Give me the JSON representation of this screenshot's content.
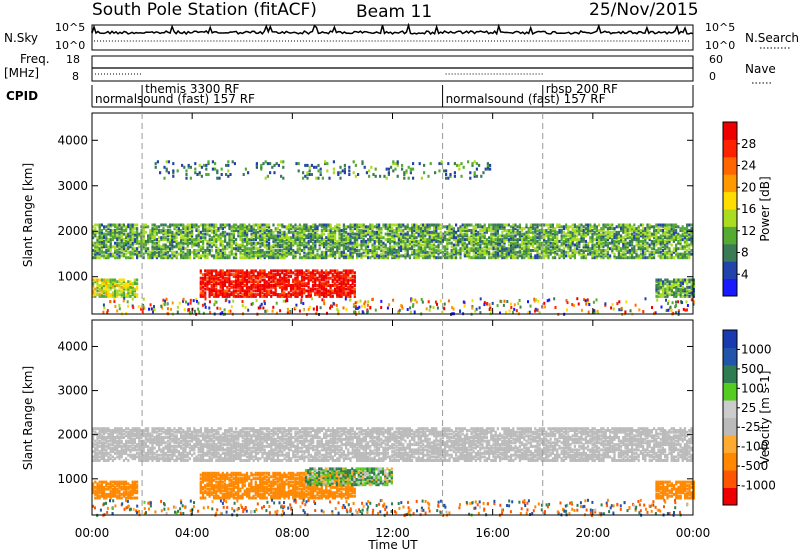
{
  "header": {
    "station": "South Pole Station (fitACF)",
    "beam": "Beam 11",
    "date": "25/Nov/2015"
  },
  "sky_panel": {
    "left_label": "N.Sky",
    "right_label": "N.Search",
    "left_ticks": [
      "10^5",
      "10^0"
    ],
    "right_ticks": [
      "10^5",
      "10^0"
    ]
  },
  "freq_panel": {
    "left_label_1": "Freq.",
    "left_label_2": "[MHz]",
    "right_label": "Nave",
    "left_ticks": [
      "18",
      "8"
    ],
    "right_ticks": [
      "60",
      "0"
    ]
  },
  "cpid_panel": {
    "label": "CPID",
    "segments": [
      {
        "text": "normalsound (fast) 157 RF",
        "start_hour": 0,
        "row": 2
      },
      {
        "text": "themis 3300 RF",
        "start_hour": 2,
        "row": 1
      },
      {
        "text": "normalsound (fast) 157 RF",
        "start_hour": 14,
        "row": 2
      },
      {
        "text": "rbsp 200 RF",
        "start_hour": 18,
        "row": 1
      }
    ]
  },
  "colors": {
    "power": [
      "#1a1aff",
      "#2244aa",
      "#3a7a55",
      "#55aa33",
      "#aadd22",
      "#ffdd00",
      "#ff9900",
      "#ff6600",
      "#ff2200",
      "#ee0000"
    ],
    "velocity": [
      "#ee0000",
      "#ff5500",
      "#ff8800",
      "#ffaa33",
      "#bbbbbb",
      "#cccccc",
      "#55cc22",
      "#2e7d50",
      "#2255aa",
      "#1a3ab0"
    ],
    "ground_scatter": "#bbbbbb"
  },
  "chart_data": [
    {
      "type": "heatmap",
      "quantity": "Power",
      "ylabel": "Slant Range [km]",
      "xlabel": "Time UT",
      "xlim": [
        0,
        24
      ],
      "ylim": [
        180,
        4600
      ],
      "xticks": [
        "00:00",
        "04:00",
        "08:00",
        "12:00",
        "16:00",
        "20:00",
        "00:00"
      ],
      "yticks": [
        1000,
        2000,
        3000,
        4000
      ],
      "colorbar": {
        "label": "Power [dB]",
        "ticks": [
          4,
          8,
          12,
          16,
          20,
          24,
          28
        ],
        "range": [
          0,
          30
        ]
      },
      "vertical_markers_hours": [
        2,
        14,
        18
      ],
      "regions": [
        {
          "name": "F-region band",
          "t": [
            0,
            23.9
          ],
          "range_km": [
            1450,
            2200
          ],
          "value": 10
        },
        {
          "name": "strong echoes",
          "t": [
            4.3,
            10.5
          ],
          "range_km": [
            600,
            1200
          ],
          "value": 28
        },
        {
          "name": "upper patches",
          "t": [
            2.5,
            16
          ],
          "range_km": [
            3200,
            3600
          ],
          "value": 8
        },
        {
          "name": "early echoes",
          "t": [
            0,
            1.8
          ],
          "range_km": [
            600,
            1000
          ],
          "value": 14
        },
        {
          "name": "late echoes",
          "t": [
            22.5,
            24
          ],
          "range_km": [
            600,
            1000
          ],
          "value": 10
        }
      ]
    },
    {
      "type": "heatmap",
      "quantity": "Velocity",
      "ylabel": "Slant Range [km]",
      "xlabel": "Time UT",
      "xlim": [
        0,
        24
      ],
      "ylim": [
        180,
        4600
      ],
      "xticks": [
        "00:00",
        "04:00",
        "08:00",
        "12:00",
        "16:00",
        "20:00",
        "00:00"
      ],
      "yticks": [
        1000,
        2000,
        3000,
        4000
      ],
      "colorbar": {
        "label": "Velocity [m s-1]",
        "ticks": [
          1000,
          500,
          100,
          25,
          -25,
          -100,
          -500,
          -1000
        ]
      },
      "vertical_markers_hours": [
        2,
        14,
        18
      ],
      "regions": [
        {
          "name": "ground scatter band",
          "t": [
            0,
            23.9
          ],
          "range_km": [
            1450,
            2200
          ],
          "value": 0
        },
        {
          "name": "strong echoes",
          "t": [
            4.3,
            10.5
          ],
          "range_km": [
            600,
            1200
          ],
          "value": -300
        },
        {
          "name": "green echoes",
          "t": [
            8.5,
            12
          ],
          "range_km": [
            900,
            1300
          ],
          "value": 80
        },
        {
          "name": "early echoes",
          "t": [
            0,
            1.8
          ],
          "range_km": [
            600,
            1000
          ],
          "value": -300
        },
        {
          "name": "late echoes",
          "t": [
            22.5,
            24
          ],
          "range_km": [
            600,
            1000
          ],
          "value": -300
        }
      ]
    }
  ]
}
